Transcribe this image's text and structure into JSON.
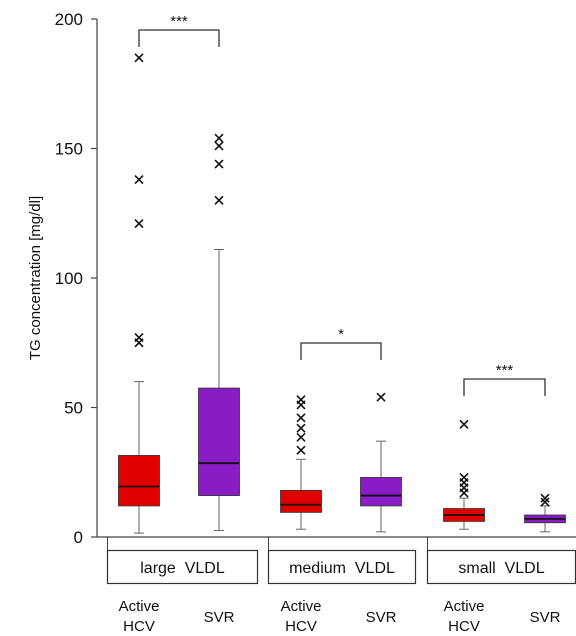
{
  "chart_data": {
    "type": "boxplot",
    "ylabel": "TG  concentration  [mg/dl]",
    "ylim": [
      0,
      200
    ],
    "yticks": [
      0,
      50,
      100,
      150,
      200
    ],
    "groups": [
      {
        "label": "large  VLDL",
        "significance": "***"
      },
      {
        "label": "medium  VLDL",
        "significance": "*"
      },
      {
        "label": "small  VLDL",
        "significance": "***"
      }
    ],
    "categories": [
      {
        "group": 0,
        "label_lines": [
          "Active",
          "HCV"
        ],
        "color": "#e00000",
        "min": 1.5,
        "q1": 12,
        "median": 19.5,
        "q3": 31.5,
        "max": 60,
        "outliers": [
          75,
          77,
          121,
          138,
          185
        ]
      },
      {
        "group": 0,
        "label_lines": [
          "SVR"
        ],
        "color": "#8a1cc6",
        "min": 2.5,
        "q1": 16,
        "median": 28.5,
        "q3": 57.5,
        "max": 111,
        "outliers": [
          130,
          144,
          151,
          154
        ]
      },
      {
        "group": 1,
        "label_lines": [
          "Active",
          "HCV"
        ],
        "color": "#e00000",
        "min": 3,
        "q1": 9.5,
        "median": 12.5,
        "q3": 18,
        "max": 30,
        "outliers": [
          33.5,
          38.5,
          42,
          46,
          51,
          53
        ]
      },
      {
        "group": 1,
        "label_lines": [
          "SVR"
        ],
        "color": "#8a1cc6",
        "min": 2,
        "q1": 12,
        "median": 16,
        "q3": 23,
        "max": 37,
        "outliers": [
          54
        ]
      },
      {
        "group": 2,
        "label_lines": [
          "Active",
          "HCV"
        ],
        "color": "#e00000",
        "min": 3,
        "q1": 6,
        "median": 8.5,
        "q3": 11,
        "max": 15,
        "outliers": [
          17,
          19,
          21,
          23,
          43.5
        ]
      },
      {
        "group": 2,
        "label_lines": [
          "SVR"
        ],
        "color": "#8a1cc6",
        "min": 2,
        "q1": 5.5,
        "median": 7,
        "q3": 8.5,
        "max": 12,
        "outliers": [
          13.5,
          15
        ]
      }
    ],
    "grid": false,
    "legend": "none"
  }
}
